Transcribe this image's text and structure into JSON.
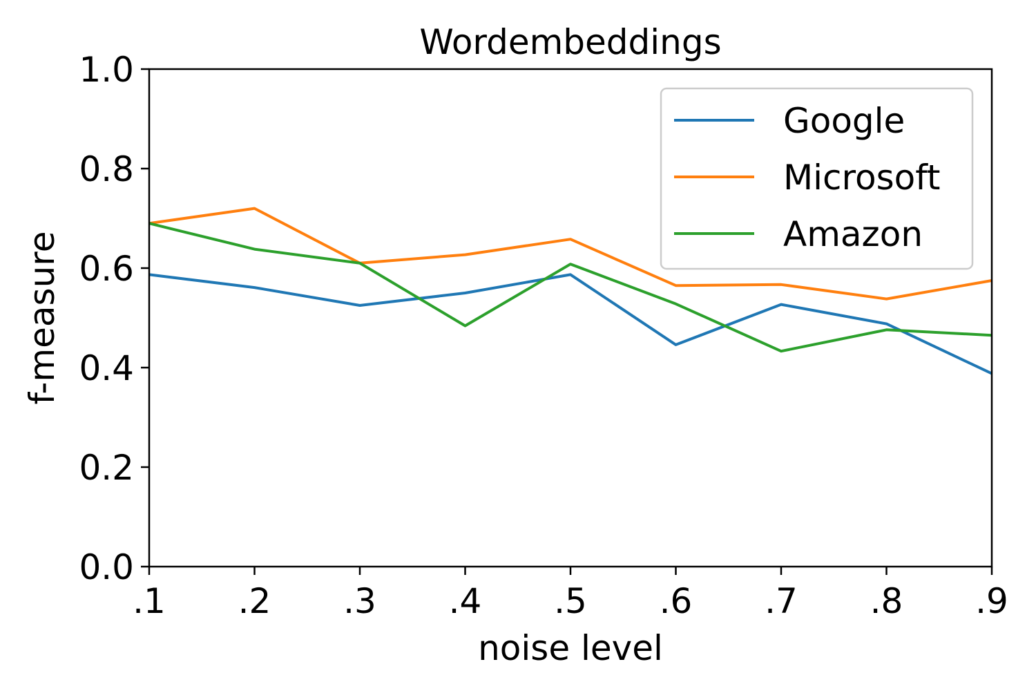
{
  "chart_data": {
    "type": "line",
    "title": "Wordembeddings",
    "xlabel": "noise level",
    "ylabel": "f-measure",
    "categories": [
      ".1",
      ".2",
      ".3",
      ".4",
      ".5",
      ".6",
      ".7",
      ".8",
      ".9"
    ],
    "ylim": [
      0.0,
      1.0
    ],
    "yticks": [
      "0.0",
      "0.2",
      "0.4",
      "0.6",
      "0.8",
      "1.0"
    ],
    "grid": false,
    "legend_position": "top-right",
    "series": [
      {
        "name": "Google",
        "color": "#1f77b4",
        "values": [
          0.587,
          0.561,
          0.525,
          0.55,
          0.587,
          0.446,
          0.527,
          0.488,
          0.388
        ]
      },
      {
        "name": "Microsoft",
        "color": "#ff7f0e",
        "values": [
          0.69,
          0.72,
          0.61,
          0.627,
          0.658,
          0.565,
          0.567,
          0.538,
          0.575
        ]
      },
      {
        "name": "Amazon",
        "color": "#2ca02c",
        "values": [
          0.69,
          0.638,
          0.61,
          0.484,
          0.608,
          0.528,
          0.433,
          0.476,
          0.465
        ]
      }
    ]
  }
}
